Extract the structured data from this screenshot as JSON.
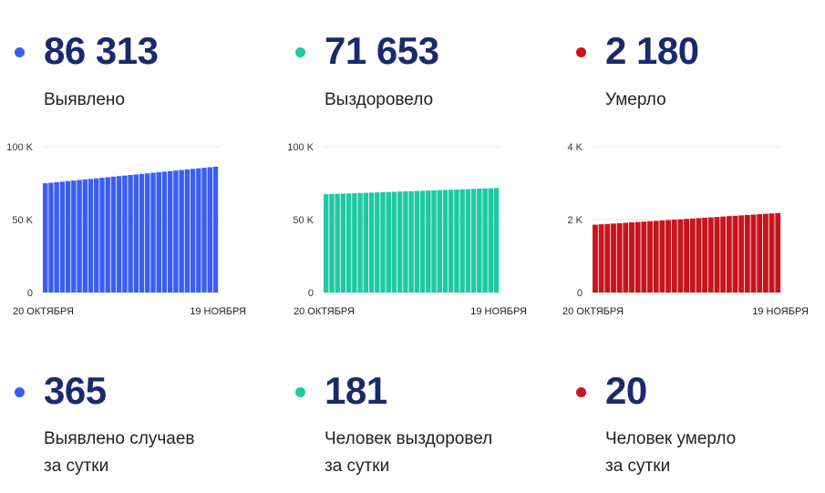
{
  "colors": {
    "blue": "#3a5ef0",
    "green": "#1ec9a4",
    "red": "#c8141c",
    "bar_blue": "#3a5ef0",
    "bar_green": "#1ec9a4",
    "bar_red": "#c8141c"
  },
  "top_stats": [
    {
      "value": "86 313",
      "label": "Выявлено",
      "color": "#3a5ef0"
    },
    {
      "value": "71 653",
      "label": "Выздоровело",
      "color": "#1ec9a4"
    },
    {
      "value": "2 180",
      "label": "Умерло",
      "color": "#c8141c"
    }
  ],
  "bottom_stats": [
    {
      "value": "365",
      "label_line1": "Выявлено случаев",
      "label_line2": "за сутки",
      "color": "#3a5ef0"
    },
    {
      "value": "181",
      "label_line1": "Человек выздоровел",
      "label_line2": "за сутки",
      "color": "#1ec9a4"
    },
    {
      "value": "20",
      "label_line1": "Человек умерло",
      "label_line2": "за сутки",
      "color": "#c8141c"
    }
  ],
  "chart_data": [
    {
      "type": "bar",
      "title": "",
      "color": "#3a5ef0",
      "x_start_label": "20 ОКТЯБРЯ",
      "x_end_label": "19 НОЯБРЯ",
      "y_ticks": [
        {
          "value": 0,
          "label": "0"
        },
        {
          "value": 50000,
          "label": "50 K"
        },
        {
          "value": 100000,
          "label": "100 K"
        }
      ],
      "ylim": [
        0,
        100000
      ],
      "start_value": 74900,
      "end_value": 86313,
      "count": 31
    },
    {
      "type": "bar",
      "title": "",
      "color": "#1ec9a4",
      "x_start_label": "20 ОКТЯБРЯ",
      "x_end_label": "19 НОЯБРЯ",
      "y_ticks": [
        {
          "value": 0,
          "label": "0"
        },
        {
          "value": 50000,
          "label": "50 K"
        },
        {
          "value": 100000,
          "label": "100 K"
        }
      ],
      "ylim": [
        0,
        100000
      ],
      "start_value": 67400,
      "end_value": 71653,
      "count": 31
    },
    {
      "type": "bar",
      "title": "",
      "color": "#c8141c",
      "x_start_label": "20 ОКТЯБРЯ",
      "x_end_label": "19 НОЯБРЯ",
      "y_ticks": [
        {
          "value": 0,
          "label": "0"
        },
        {
          "value": 2000,
          "label": "2 K"
        },
        {
          "value": 4000,
          "label": "4 K"
        }
      ],
      "ylim": [
        0,
        4000
      ],
      "start_value": 1860,
      "end_value": 2180,
      "count": 31
    }
  ]
}
